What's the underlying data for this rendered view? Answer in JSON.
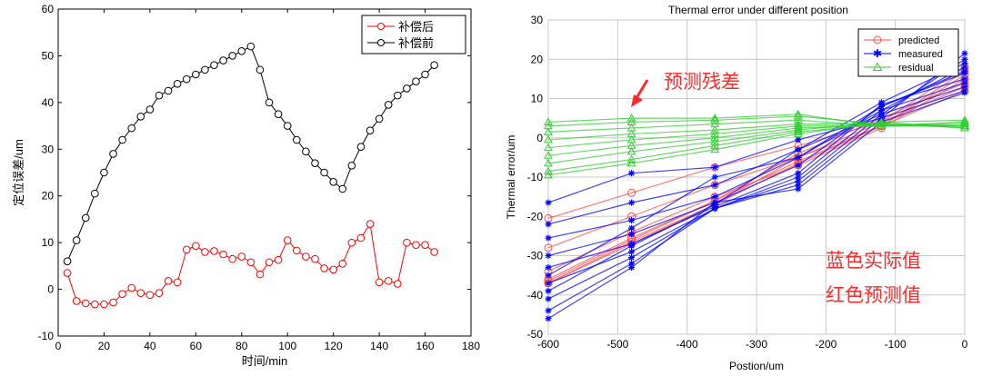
{
  "chart_data": [
    {
      "type": "line",
      "title": "",
      "xlabel": "时间/min",
      "ylabel": "定位误差/um",
      "xlim": [
        0,
        180
      ],
      "ylim": [
        -10,
        60
      ],
      "xticks": [
        "0",
        "20",
        "40",
        "60",
        "80",
        "100",
        "120",
        "140",
        "160",
        "180"
      ],
      "yticks": [
        "-10",
        "0",
        "10",
        "20",
        "30",
        "40",
        "50",
        "60"
      ],
      "grid": false,
      "legend_position": "top-right",
      "series": [
        {
          "name": "补偿后",
          "color": "#ff0000",
          "marker": "circle",
          "x": [
            4,
            8,
            12,
            16,
            20,
            24,
            28,
            32,
            36,
            40,
            44,
            48,
            52,
            56,
            60,
            64,
            68,
            72,
            76,
            80,
            84,
            88,
            92,
            96,
            100,
            104,
            108,
            112,
            116,
            120,
            124,
            128,
            132,
            136,
            140,
            144,
            148,
            152,
            156,
            160,
            164
          ],
          "y": [
            3.5,
            -2.5,
            -3,
            -3.2,
            -3.2,
            -2.8,
            -1,
            0.3,
            -0.8,
            -1.2,
            -0.8,
            1.8,
            1.5,
            8.5,
            9.3,
            8,
            8.2,
            7.5,
            6.5,
            7,
            5.8,
            3.2,
            5.8,
            6.3,
            10.5,
            8.3,
            7,
            6.5,
            4.5,
            4.2,
            5.5,
            10,
            11,
            14,
            1.5,
            1.8,
            1.2,
            10,
            9.5,
            9.5,
            8
          ]
        },
        {
          "name": "补偿前",
          "color": "#000000",
          "marker": "circle",
          "x": [
            4,
            8,
            12,
            16,
            20,
            24,
            28,
            32,
            36,
            40,
            44,
            48,
            52,
            56,
            60,
            64,
            68,
            72,
            76,
            80,
            84,
            88,
            92,
            96,
            100,
            104,
            108,
            112,
            116,
            120,
            124,
            128,
            132,
            136,
            140,
            144,
            148,
            152,
            156,
            160,
            164
          ],
          "y": [
            6,
            10.5,
            15.3,
            20.5,
            25,
            29,
            32,
            34.5,
            37,
            38.5,
            41.5,
            42.5,
            44,
            45,
            46,
            47,
            48,
            49,
            50,
            51,
            52,
            47,
            40,
            37.5,
            35,
            32,
            29.5,
            27,
            25,
            23,
            21.5,
            26.5,
            30.5,
            34,
            36.5,
            39.5,
            41.5,
            43,
            44.5,
            46,
            48
          ]
        }
      ]
    },
    {
      "type": "line",
      "title": "Thermal error under different position",
      "xlabel": "Postion/um",
      "ylabel": "Thermal error/um",
      "xlim": [
        -600,
        0
      ],
      "ylim": [
        -50,
        30
      ],
      "xticks": [
        "-600",
        "-500",
        "-400",
        "-300",
        "-200",
        "-100",
        "0"
      ],
      "yticks": [
        "-50",
        "-40",
        "-30",
        "-20",
        "-10",
        "0",
        "10",
        "20",
        "30"
      ],
      "grid": true,
      "legend_position": "top-right",
      "x": [
        -600,
        -480,
        -360,
        -240,
        -120,
        0
      ],
      "groups": [
        {
          "name": "predicted",
          "color": "#ff4d4d",
          "marker": "circle",
          "lines": [
            [
              -20.5,
              -14,
              -7.5,
              -2,
              4,
              13
            ],
            [
              -28,
              -20,
              -12,
              -5,
              3,
              12
            ],
            [
              -34,
              -24,
              -15,
              -7,
              2.5,
              15
            ],
            [
              -36,
              -25.5,
              -16,
              -6,
              3,
              16
            ],
            [
              -37,
              -26.5,
              -17,
              -6.5,
              3,
              17
            ],
            [
              -37,
              -27,
              -17,
              -5,
              4,
              18
            ],
            [
              -36.5,
              -26,
              -16,
              -4,
              5,
              14
            ]
          ]
        },
        {
          "name": "measured",
          "color": "#0000ff",
          "marker": "star",
          "lines": [
            [
              -16.5,
              -9,
              -7.5,
              -0.5,
              5,
              21.5
            ],
            [
              -22,
              -16.5,
              -12,
              -3,
              6,
              20
            ],
            [
              -25.5,
              -21,
              -15,
              -5,
              7,
              18
            ],
            [
              -30,
              -24.5,
              -16.5,
              -7,
              8,
              16.5
            ],
            [
              -33,
              -27,
              -17.5,
              -9,
              8.5,
              15
            ],
            [
              -37,
              -29,
              -18,
              -10,
              7,
              14
            ],
            [
              -41,
              -30.5,
              -18,
              -11,
              6,
              13
            ],
            [
              -44,
              -32,
              -18,
              -12,
              5,
              12
            ],
            [
              -46,
              -33,
              -16.5,
              -13,
              4,
              11.5
            ],
            [
              -39,
              -27.5,
              -17,
              -3,
              9,
              19
            ],
            [
              -35,
              -23,
              -10,
              -5,
              8,
              17
            ]
          ]
        },
        {
          "name": "residual",
          "color": "#33cc33",
          "marker": "triangle",
          "lines": [
            [
              4,
              5,
              5,
              6,
              3,
              3
            ],
            [
              3,
              4,
              4.5,
              5.5,
              3.5,
              2.5
            ],
            [
              1.5,
              2.5,
              3.5,
              4.5,
              3,
              4
            ],
            [
              -0.5,
              1,
              2,
              3.5,
              3.5,
              3
            ],
            [
              -2.5,
              -0.5,
              1,
              3,
              3,
              4
            ],
            [
              -4.5,
              -2,
              0,
              2.5,
              3,
              3.5
            ],
            [
              -6.5,
              -3.5,
              -1,
              2,
              4,
              4.5
            ],
            [
              -8.5,
              -5.5,
              -2,
              1.5,
              3.5,
              3
            ],
            [
              -9.5,
              -6.5,
              -3,
              1,
              4,
              2.5
            ]
          ]
        }
      ],
      "annotations": [
        "预测残差",
        "蓝色实际值",
        "红色预测值"
      ]
    }
  ]
}
